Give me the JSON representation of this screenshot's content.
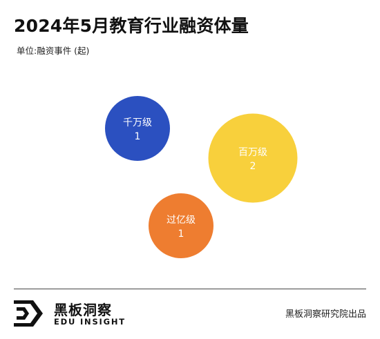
{
  "header": {
    "title": "2024年5月教育行业融资体量",
    "subtitle": "单位:融资事件 (起)"
  },
  "chart_data": {
    "type": "bubble",
    "title": "2024年5月教育行业融资体量",
    "subtitle": "单位:融资事件 (起)",
    "categories": [
      "千万级",
      "百万级",
      "过亿级"
    ],
    "values": [
      1,
      2,
      1
    ],
    "colors": [
      "#2B50C0",
      "#F8D03C",
      "#EE7D30"
    ]
  },
  "footer": {
    "logo_cn": "黑板洞察",
    "logo_en": "EDU INSIGHT",
    "source": "黑板洞察研究院出品"
  }
}
